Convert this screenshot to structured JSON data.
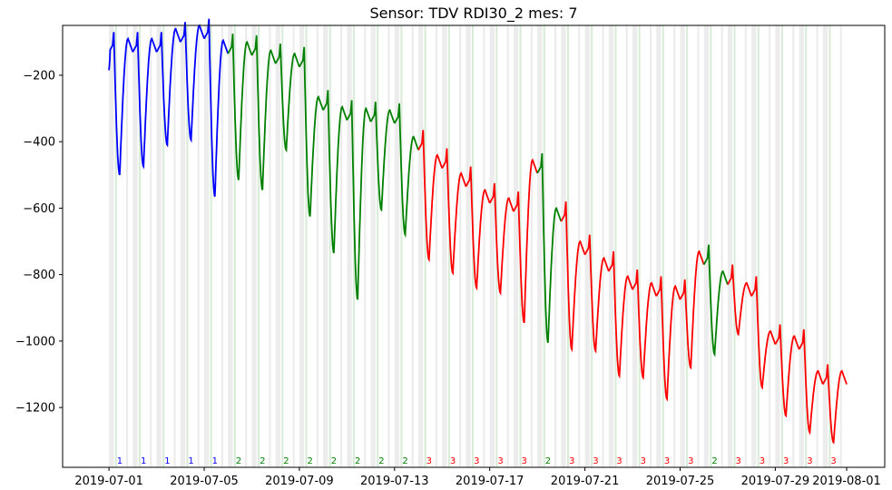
{
  "chart_data": {
    "type": "line",
    "title": "Sensor: TDV RDI30_2 mes: 7",
    "xlabel": "",
    "ylabel": "",
    "xlim": [
      "2019-07-01",
      "2019-08-01"
    ],
    "ylim": [
      -1380,
      -50
    ],
    "x_ticks": [
      "2019-07-01",
      "2019-07-05",
      "2019-07-09",
      "2019-07-13",
      "2019-07-17",
      "2019-07-21",
      "2019-07-25",
      "2019-07-29",
      "2019-08-01"
    ],
    "y_ticks": [
      -200,
      -400,
      -600,
      -800,
      -1000,
      -1200
    ],
    "grid": false,
    "segment_colors": {
      "1": "#0000ff",
      "2": "#008000",
      "3": "#ff0000"
    },
    "segments": [
      {
        "day": 1,
        "cluster": "1"
      },
      {
        "day": 2,
        "cluster": "1"
      },
      {
        "day": 3,
        "cluster": "1"
      },
      {
        "day": 4,
        "cluster": "1"
      },
      {
        "day": 5,
        "cluster": "1"
      },
      {
        "day": 6,
        "cluster": "2"
      },
      {
        "day": 7,
        "cluster": "2"
      },
      {
        "day": 8,
        "cluster": "2"
      },
      {
        "day": 9,
        "cluster": "2"
      },
      {
        "day": 10,
        "cluster": "2"
      },
      {
        "day": 11,
        "cluster": "2"
      },
      {
        "day": 12,
        "cluster": "2"
      },
      {
        "day": 13,
        "cluster": "2"
      },
      {
        "day": 14,
        "cluster": "3"
      },
      {
        "day": 15,
        "cluster": "3"
      },
      {
        "day": 16,
        "cluster": "3"
      },
      {
        "day": 17,
        "cluster": "3"
      },
      {
        "day": 18,
        "cluster": "3"
      },
      {
        "day": 19,
        "cluster": "2"
      },
      {
        "day": 20,
        "cluster": "3"
      },
      {
        "day": 21,
        "cluster": "3"
      },
      {
        "day": 22,
        "cluster": "3"
      },
      {
        "day": 23,
        "cluster": "3"
      },
      {
        "day": 24,
        "cluster": "3"
      },
      {
        "day": 25,
        "cluster": "3"
      },
      {
        "day": 26,
        "cluster": "2"
      },
      {
        "day": 27,
        "cluster": "3"
      },
      {
        "day": 28,
        "cluster": "3"
      },
      {
        "day": 29,
        "cluster": "3"
      },
      {
        "day": 30,
        "cluster": "3"
      },
      {
        "day": 31,
        "cluster": "3"
      }
    ],
    "daily_profile": [
      {
        "day": 1,
        "peak": -130,
        "trough": -500
      },
      {
        "day": 2,
        "peak": -130,
        "trough": -475
      },
      {
        "day": 3,
        "peak": -130,
        "trough": -410
      },
      {
        "day": 4,
        "peak": -100,
        "trough": -395
      },
      {
        "day": 5,
        "peak": -90,
        "trough": -565
      },
      {
        "day": 6,
        "peak": -135,
        "trough": -515
      },
      {
        "day": 7,
        "peak": -140,
        "trough": -545
      },
      {
        "day": 8,
        "peak": -165,
        "trough": -425
      },
      {
        "day": 9,
        "peak": -175,
        "trough": -625
      },
      {
        "day": 10,
        "peak": -305,
        "trough": -735
      },
      {
        "day": 11,
        "peak": -335,
        "trough": -875
      },
      {
        "day": 12,
        "peak": -340,
        "trough": -605
      },
      {
        "day": 13,
        "peak": -345,
        "trough": -680
      },
      {
        "day": 14,
        "peak": -425,
        "trough": -755
      },
      {
        "day": 15,
        "peak": -480,
        "trough": -795
      },
      {
        "day": 16,
        "peak": -535,
        "trough": -840
      },
      {
        "day": 17,
        "peak": -585,
        "trough": -855
      },
      {
        "day": 18,
        "peak": -610,
        "trough": -945
      },
      {
        "day": 19,
        "peak": -495,
        "trough": -1005
      },
      {
        "day": 20,
        "peak": -640,
        "trough": -1025
      },
      {
        "day": 21,
        "peak": -740,
        "trough": -1030
      },
      {
        "day": 22,
        "peak": -790,
        "trough": -1105
      },
      {
        "day": 23,
        "peak": -845,
        "trough": -1110
      },
      {
        "day": 24,
        "peak": -865,
        "trough": -1175
      },
      {
        "day": 25,
        "peak": -875,
        "trough": -1080
      },
      {
        "day": 26,
        "peak": -770,
        "trough": -1040
      },
      {
        "day": 27,
        "peak": -830,
        "trough": -980
      },
      {
        "day": 28,
        "peak": -865,
        "trough": -1140
      },
      {
        "day": 29,
        "peak": -1010,
        "trough": -1225
      },
      {
        "day": 30,
        "peak": -1025,
        "trough": -1275
      },
      {
        "day": 31,
        "peak": -1130,
        "trough": -1305
      }
    ]
  }
}
